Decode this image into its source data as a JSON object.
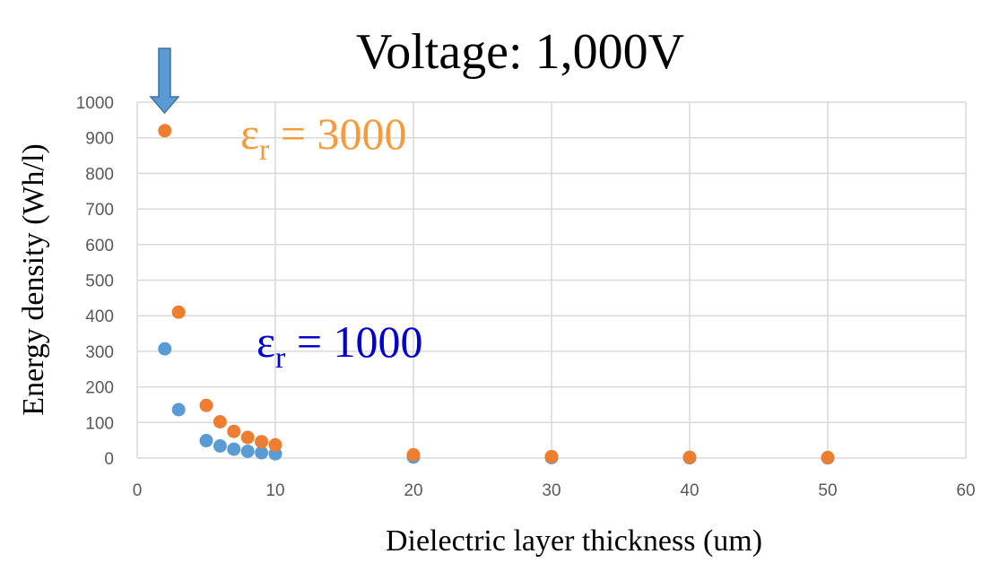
{
  "chart_data": {
    "type": "scatter",
    "title": "Voltage: 1,000V",
    "xlabel": "Dielectric layer thickness (um)",
    "ylabel": "Energy density (Wh/l)",
    "xlim": [
      0,
      60
    ],
    "ylim": [
      0,
      1000
    ],
    "xticks": [
      "0",
      "10",
      "20",
      "30",
      "40",
      "50",
      "60"
    ],
    "yticks": [
      "0",
      "100",
      "200",
      "300",
      "400",
      "500",
      "600",
      "700",
      "800",
      "900",
      "1000"
    ],
    "grid": true,
    "series": [
      {
        "name": "εr = 3000",
        "color": "#ED7D31",
        "x": [
          2,
          3,
          5,
          6,
          7,
          8,
          9,
          10,
          20,
          30,
          40,
          50
        ],
        "y": [
          920,
          410,
          148,
          102,
          75,
          58,
          46,
          37,
          9,
          4,
          2.3,
          1.5
        ]
      },
      {
        "name": "εr = 1000",
        "color": "#5B9BD5",
        "x": [
          2,
          3,
          5,
          6,
          7,
          8,
          9,
          10,
          20,
          30,
          40,
          50
        ],
        "y": [
          307,
          136,
          49,
          34,
          25,
          19,
          15,
          12,
          3,
          1.4,
          0.8,
          0.5
        ]
      }
    ],
    "annotations": [
      {
        "symbol": "ε",
        "sub": "r",
        "text": " = 3000",
        "color": "#F79A3A"
      },
      {
        "symbol": "ε",
        "sub": "r",
        "text": " = 1000",
        "color": "#0000CC"
      }
    ],
    "arrow": {
      "points_to_x": 2,
      "color": "#5B9BD5"
    }
  }
}
